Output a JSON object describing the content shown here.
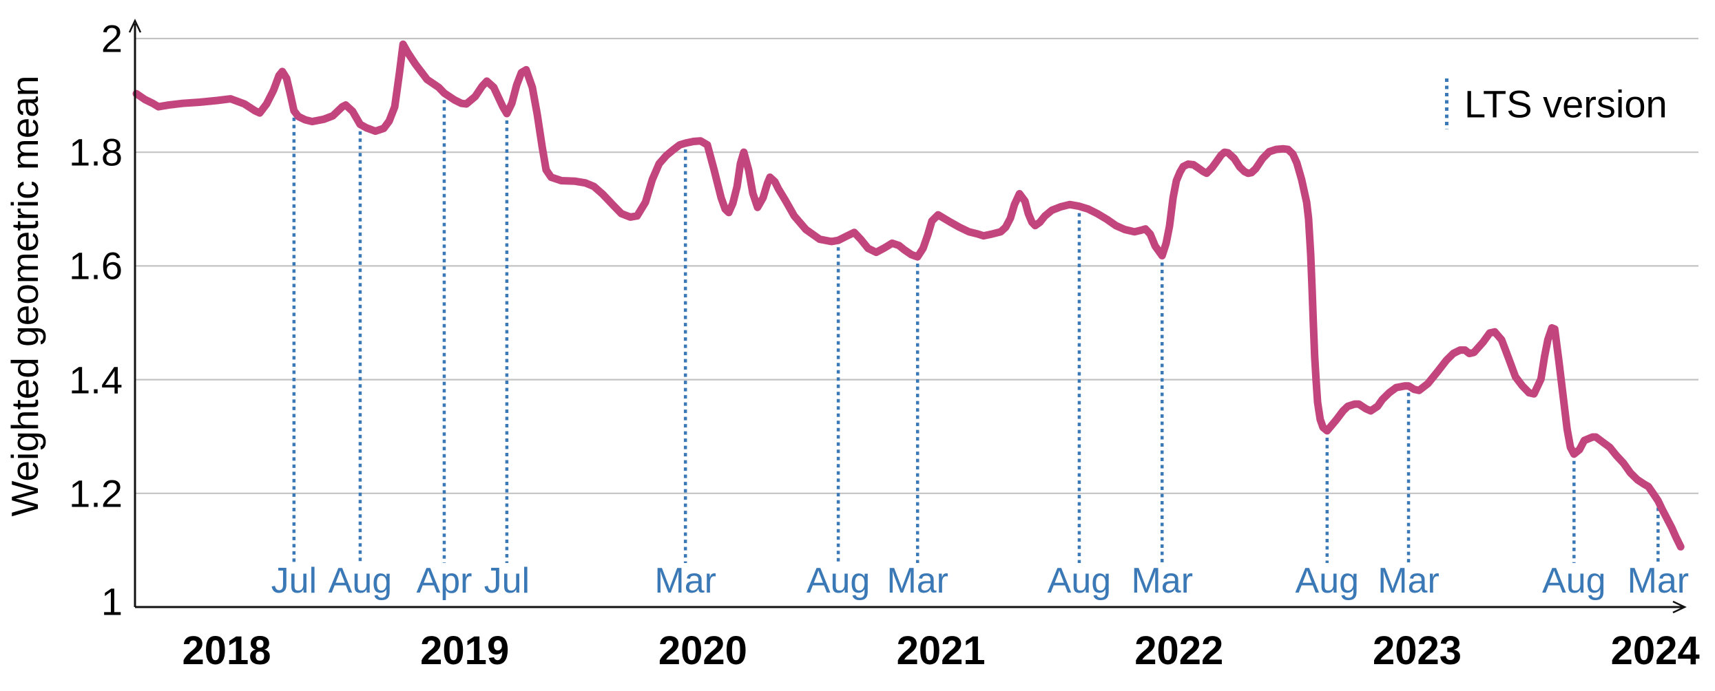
{
  "legend": {
    "label": "LTS version"
  },
  "colors": {
    "series": "#c2457e",
    "lts": "#3a78b6",
    "grid": "#c3c3c3",
    "axis": "#111111"
  },
  "chart_data": {
    "type": "line",
    "title": "",
    "xlabel": "",
    "ylabel": "Weighted geometric mean",
    "ylim": [
      1,
      2.02
    ],
    "xlim": [
      2017.6,
      2024.15
    ],
    "grid": "horizontal-only",
    "legend_position": "top-right",
    "y_ticks": [
      {
        "label": "2",
        "value": 2.0
      },
      {
        "label": "1.8",
        "value": 1.8
      },
      {
        "label": "1.6",
        "value": 1.6
      },
      {
        "label": "1.4",
        "value": 1.4
      },
      {
        "label": "1.2",
        "value": 1.2
      },
      {
        "label": "1",
        "value": 1.0
      }
    ],
    "x_ticks": [
      {
        "label": "2018",
        "value": 2018
      },
      {
        "label": "2019",
        "value": 2019
      },
      {
        "label": "2020",
        "value": 2020
      },
      {
        "label": "2021",
        "value": 2021
      },
      {
        "label": "2022",
        "value": 2022
      },
      {
        "label": "2023",
        "value": 2023
      },
      {
        "label": "2024",
        "value": 2024
      }
    ],
    "lts_markers": {
      "legend_label": "LTS version",
      "style": "dotted-vertical",
      "items": [
        {
          "month": "Jul",
          "x": 2018.283,
          "y_top": 1.873
        },
        {
          "month": "Aug",
          "x": 2018.561,
          "y_top": 1.849
        },
        {
          "month": "Apr",
          "x": 2018.914,
          "y_top": 1.904
        },
        {
          "month": "Jul",
          "x": 2019.177,
          "y_top": 1.868
        },
        {
          "month": "Mar",
          "x": 2019.927,
          "y_top": 1.817
        },
        {
          "month": "Aug",
          "x": 2020.569,
          "y_top": 1.645
        },
        {
          "month": "Mar",
          "x": 2020.902,
          "y_top": 1.616
        },
        {
          "month": "Aug",
          "x": 2021.581,
          "y_top": 1.705
        },
        {
          "month": "Mar",
          "x": 2021.929,
          "y_top": 1.618
        },
        {
          "month": "Aug",
          "x": 2022.622,
          "y_top": 1.31
        },
        {
          "month": "Mar",
          "x": 2022.964,
          "y_top": 1.389
        },
        {
          "month": "Aug",
          "x": 2023.659,
          "y_top": 1.269
        },
        {
          "month": "Mar",
          "x": 2024.012,
          "y_top": 1.187
        }
      ]
    },
    "series": [
      {
        "name": "Weighted geometric mean",
        "points": [
          [
            2017.621,
            1.903
          ],
          [
            2017.656,
            1.893
          ],
          [
            2017.69,
            1.886
          ],
          [
            2017.714,
            1.88
          ],
          [
            2017.757,
            1.883
          ],
          [
            2017.815,
            1.886
          ],
          [
            2017.887,
            1.888
          ],
          [
            2017.96,
            1.891
          ],
          [
            2018.017,
            1.894
          ],
          [
            2018.075,
            1.885
          ],
          [
            2018.119,
            1.873
          ],
          [
            2018.139,
            1.869
          ],
          [
            2018.168,
            1.885
          ],
          [
            2018.197,
            1.909
          ],
          [
            2018.22,
            1.935
          ],
          [
            2018.234,
            1.942
          ],
          [
            2018.252,
            1.93
          ],
          [
            2018.266,
            1.905
          ],
          [
            2018.283,
            1.873
          ],
          [
            2018.301,
            1.863
          ],
          [
            2018.33,
            1.857
          ],
          [
            2018.359,
            1.854
          ],
          [
            2018.408,
            1.858
          ],
          [
            2018.446,
            1.864
          ],
          [
            2018.486,
            1.88
          ],
          [
            2018.5,
            1.883
          ],
          [
            2018.529,
            1.872
          ],
          [
            2018.561,
            1.849
          ],
          [
            2018.587,
            1.843
          ],
          [
            2018.625,
            1.837
          ],
          [
            2018.66,
            1.842
          ],
          [
            2018.683,
            1.855
          ],
          [
            2018.706,
            1.88
          ],
          [
            2018.726,
            1.94
          ],
          [
            2018.741,
            1.99
          ],
          [
            2018.761,
            1.975
          ],
          [
            2018.793,
            1.955
          ],
          [
            2018.842,
            1.928
          ],
          [
            2018.891,
            1.914
          ],
          [
            2018.914,
            1.904
          ],
          [
            2018.957,
            1.892
          ],
          [
            2018.986,
            1.886
          ],
          [
            2019.007,
            1.885
          ],
          [
            2019.044,
            1.898
          ],
          [
            2019.073,
            1.916
          ],
          [
            2019.093,
            1.925
          ],
          [
            2019.122,
            1.914
          ],
          [
            2019.14,
            1.898
          ],
          [
            2019.16,
            1.88
          ],
          [
            2019.177,
            1.868
          ],
          [
            2019.198,
            1.886
          ],
          [
            2019.218,
            1.918
          ],
          [
            2019.238,
            1.94
          ],
          [
            2019.258,
            1.945
          ],
          [
            2019.284,
            1.914
          ],
          [
            2019.305,
            1.866
          ],
          [
            2019.325,
            1.81
          ],
          [
            2019.342,
            1.769
          ],
          [
            2019.363,
            1.756
          ],
          [
            2019.406,
            1.75
          ],
          [
            2019.464,
            1.749
          ],
          [
            2019.507,
            1.746
          ],
          [
            2019.542,
            1.74
          ],
          [
            2019.58,
            1.726
          ],
          [
            2019.623,
            1.707
          ],
          [
            2019.658,
            1.692
          ],
          [
            2019.695,
            1.686
          ],
          [
            2019.724,
            1.688
          ],
          [
            2019.759,
            1.712
          ],
          [
            2019.788,
            1.752
          ],
          [
            2019.817,
            1.78
          ],
          [
            2019.846,
            1.794
          ],
          [
            2019.875,
            1.804
          ],
          [
            2019.903,
            1.813
          ],
          [
            2019.927,
            1.816
          ],
          [
            2019.961,
            1.819
          ],
          [
            2019.99,
            1.82
          ],
          [
            2020.019,
            1.813
          ],
          [
            2020.048,
            1.768
          ],
          [
            2020.077,
            1.72
          ],
          [
            2020.094,
            1.7
          ],
          [
            2020.109,
            1.694
          ],
          [
            2020.126,
            1.71
          ],
          [
            2020.144,
            1.74
          ],
          [
            2020.158,
            1.78
          ],
          [
            2020.172,
            1.8
          ],
          [
            2020.193,
            1.768
          ],
          [
            2020.21,
            1.728
          ],
          [
            2020.23,
            1.703
          ],
          [
            2020.253,
            1.72
          ],
          [
            2020.271,
            1.745
          ],
          [
            2020.282,
            1.756
          ],
          [
            2020.303,
            1.748
          ],
          [
            2020.317,
            1.736
          ],
          [
            2020.346,
            1.716
          ],
          [
            2020.384,
            1.688
          ],
          [
            2020.433,
            1.664
          ],
          [
            2020.491,
            1.647
          ],
          [
            2020.54,
            1.643
          ],
          [
            2020.569,
            1.645
          ],
          [
            2020.607,
            1.653
          ],
          [
            2020.636,
            1.659
          ],
          [
            2020.665,
            1.646
          ],
          [
            2020.694,
            1.631
          ],
          [
            2020.728,
            1.624
          ],
          [
            2020.76,
            1.631
          ],
          [
            2020.795,
            1.64
          ],
          [
            2020.824,
            1.636
          ],
          [
            2020.844,
            1.629
          ],
          [
            2020.876,
            1.62
          ],
          [
            2020.902,
            1.616
          ],
          [
            2020.925,
            1.631
          ],
          [
            2020.945,
            1.655
          ],
          [
            2020.962,
            1.679
          ],
          [
            2020.988,
            1.69
          ],
          [
            2021.04,
            1.677
          ],
          [
            2021.078,
            1.668
          ],
          [
            2021.118,
            1.66
          ],
          [
            2021.156,
            1.656
          ],
          [
            2021.179,
            1.653
          ],
          [
            2021.214,
            1.656
          ],
          [
            2021.251,
            1.66
          ],
          [
            2021.272,
            1.668
          ],
          [
            2021.292,
            1.684
          ],
          [
            2021.309,
            1.708
          ],
          [
            2021.33,
            1.727
          ],
          [
            2021.353,
            1.714
          ],
          [
            2021.367,
            1.692
          ],
          [
            2021.382,
            1.677
          ],
          [
            2021.396,
            1.671
          ],
          [
            2021.416,
            1.677
          ],
          [
            2021.437,
            1.688
          ],
          [
            2021.466,
            1.698
          ],
          [
            2021.503,
            1.704
          ],
          [
            2021.541,
            1.708
          ],
          [
            2021.581,
            1.705
          ],
          [
            2021.619,
            1.7
          ],
          [
            2021.657,
            1.692
          ],
          [
            2021.697,
            1.682
          ],
          [
            2021.735,
            1.671
          ],
          [
            2021.772,
            1.664
          ],
          [
            2021.813,
            1.66
          ],
          [
            2021.842,
            1.663
          ],
          [
            2021.859,
            1.665
          ],
          [
            2021.879,
            1.656
          ],
          [
            2021.9,
            1.635
          ],
          [
            2021.929,
            1.618
          ],
          [
            2021.946,
            1.64
          ],
          [
            2021.96,
            1.67
          ],
          [
            2021.975,
            1.72
          ],
          [
            2021.989,
            1.75
          ],
          [
            2022.004,
            1.765
          ],
          [
            2022.018,
            1.775
          ],
          [
            2022.038,
            1.779
          ],
          [
            2022.061,
            1.778
          ],
          [
            2022.082,
            1.772
          ],
          [
            2022.102,
            1.766
          ],
          [
            2022.116,
            1.763
          ],
          [
            2022.139,
            1.773
          ],
          [
            2022.16,
            1.785
          ],
          [
            2022.177,
            1.795
          ],
          [
            2022.191,
            1.8
          ],
          [
            2022.206,
            1.799
          ],
          [
            2022.232,
            1.789
          ],
          [
            2022.255,
            1.774
          ],
          [
            2022.275,
            1.766
          ],
          [
            2022.29,
            1.763
          ],
          [
            2022.304,
            1.764
          ],
          [
            2022.322,
            1.771
          ],
          [
            2022.351,
            1.789
          ],
          [
            2022.379,
            1.801
          ],
          [
            2022.408,
            1.805
          ],
          [
            2022.437,
            1.806
          ],
          [
            2022.458,
            1.805
          ],
          [
            2022.478,
            1.797
          ],
          [
            2022.495,
            1.781
          ],
          [
            2022.515,
            1.752
          ],
          [
            2022.536,
            1.712
          ],
          [
            2022.544,
            1.683
          ],
          [
            2022.553,
            1.62
          ],
          [
            2022.559,
            1.56
          ],
          [
            2022.564,
            1.5
          ],
          [
            2022.57,
            1.44
          ],
          [
            2022.576,
            1.398
          ],
          [
            2022.582,
            1.36
          ],
          [
            2022.593,
            1.33
          ],
          [
            2022.605,
            1.316
          ],
          [
            2022.622,
            1.31
          ],
          [
            2022.66,
            1.329
          ],
          [
            2022.689,
            1.345
          ],
          [
            2022.709,
            1.353
          ],
          [
            2022.738,
            1.357
          ],
          [
            2022.755,
            1.357
          ],
          [
            2022.784,
            1.349
          ],
          [
            2022.805,
            1.345
          ],
          [
            2022.834,
            1.353
          ],
          [
            2022.854,
            1.365
          ],
          [
            2022.883,
            1.377
          ],
          [
            2022.912,
            1.386
          ],
          [
            2022.949,
            1.389
          ],
          [
            2022.964,
            1.389
          ],
          [
            2022.987,
            1.383
          ],
          [
            2023.008,
            1.381
          ],
          [
            2023.045,
            1.393
          ],
          [
            2023.086,
            1.414
          ],
          [
            2023.123,
            1.434
          ],
          [
            2023.152,
            1.446
          ],
          [
            2023.181,
            1.452
          ],
          [
            2023.201,
            1.452
          ],
          [
            2023.219,
            1.446
          ],
          [
            2023.239,
            1.448
          ],
          [
            2023.277,
            1.466
          ],
          [
            2023.305,
            1.482
          ],
          [
            2023.326,
            1.484
          ],
          [
            2023.355,
            1.47
          ],
          [
            2023.384,
            1.438
          ],
          [
            2023.413,
            1.405
          ],
          [
            2023.442,
            1.389
          ],
          [
            2023.47,
            1.377
          ],
          [
            2023.491,
            1.375
          ],
          [
            2023.52,
            1.401
          ],
          [
            2023.535,
            1.44
          ],
          [
            2023.549,
            1.47
          ],
          [
            2023.566,
            1.491
          ],
          [
            2023.578,
            1.489
          ],
          [
            2023.595,
            1.434
          ],
          [
            2023.615,
            1.365
          ],
          [
            2023.63,
            1.313
          ],
          [
            2023.644,
            1.281
          ],
          [
            2023.659,
            1.269
          ],
          [
            2023.682,
            1.277
          ],
          [
            2023.702,
            1.293
          ],
          [
            2023.737,
            1.299
          ],
          [
            2023.751,
            1.299
          ],
          [
            2023.78,
            1.29
          ],
          [
            2023.809,
            1.281
          ],
          [
            2023.838,
            1.266
          ],
          [
            2023.867,
            1.253
          ],
          [
            2023.896,
            1.236
          ],
          [
            2023.925,
            1.224
          ],
          [
            2023.954,
            1.216
          ],
          [
            2023.971,
            1.212
          ],
          [
            2023.991,
            1.2
          ],
          [
            2024.012,
            1.187
          ],
          [
            2024.029,
            1.172
          ],
          [
            2024.049,
            1.156
          ],
          [
            2024.07,
            1.139
          ],
          [
            2024.087,
            1.123
          ],
          [
            2024.107,
            1.106
          ]
        ]
      }
    ]
  }
}
